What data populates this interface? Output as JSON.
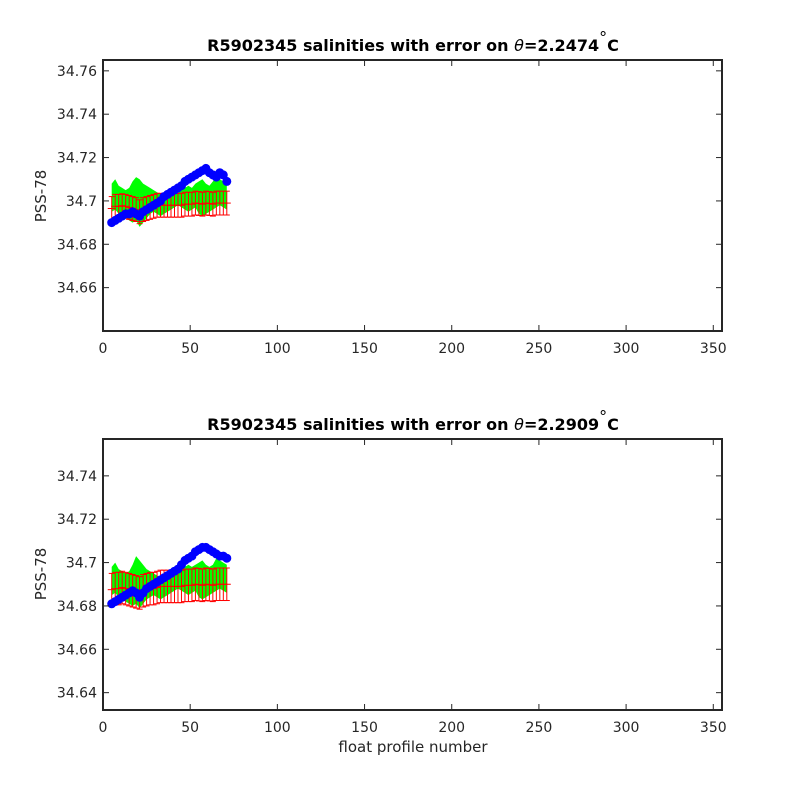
{
  "colors": {
    "band": "#00ff00",
    "errorbar": "#ff0000",
    "points": "#0000ff",
    "axis": "#262626"
  },
  "chart_data": [
    {
      "type": "scatter",
      "title_prefix": "R5902345 salinities with error on ",
      "title_theta": "θ",
      "title_value": "=2.2474",
      "title_degree": "°",
      "title_unit": "C",
      "xlabel": "",
      "ylabel": "PSS-78",
      "xlim": [
        0,
        355
      ],
      "ylim": [
        34.64,
        34.765
      ],
      "xticks": [
        0,
        50,
        100,
        150,
        200,
        250,
        300,
        350
      ],
      "yticks": [
        "34.66",
        "34.68",
        "34.7",
        "34.72",
        "34.74",
        "34.76"
      ],
      "x": [
        5,
        7,
        9,
        11,
        13,
        15,
        17,
        19,
        21,
        23,
        25,
        27,
        29,
        31,
        33,
        35,
        37,
        39,
        41,
        43,
        45,
        47,
        49,
        51,
        53,
        55,
        57,
        59,
        61,
        63,
        65,
        67,
        69,
        71
      ],
      "salinity": [
        34.69,
        34.691,
        34.692,
        34.693,
        34.694,
        34.694,
        34.695,
        34.694,
        34.693,
        34.695,
        34.696,
        34.697,
        34.698,
        34.699,
        34.7,
        34.702,
        34.703,
        34.704,
        34.705,
        34.706,
        34.707,
        34.709,
        34.71,
        34.711,
        34.712,
        34.713,
        34.714,
        34.715,
        34.713,
        34.712,
        34.711,
        34.713,
        34.712,
        34.709
      ],
      "band_upper": [
        34.708,
        34.71,
        34.707,
        34.706,
        34.705,
        34.706,
        34.709,
        34.711,
        34.71,
        34.708,
        34.707,
        34.706,
        34.705,
        34.704,
        34.703,
        34.702,
        34.703,
        34.704,
        34.705,
        34.704,
        34.705,
        34.706,
        34.707,
        34.706,
        34.708,
        34.709,
        34.71,
        34.708,
        34.707,
        34.709,
        34.711,
        34.71,
        34.709,
        34.708
      ],
      "band_lower": [
        34.695,
        34.696,
        34.694,
        34.693,
        34.692,
        34.691,
        34.69,
        34.691,
        34.688,
        34.69,
        34.692,
        34.694,
        34.695,
        34.694,
        34.693,
        34.694,
        34.695,
        34.696,
        34.697,
        34.698,
        34.697,
        34.696,
        34.695,
        34.696,
        34.697,
        34.694,
        34.693,
        34.694,
        34.695,
        34.696,
        34.697,
        34.698,
        34.697,
        34.696
      ],
      "err_center": [
        34.6965,
        34.6975,
        34.6975,
        34.6978,
        34.6975,
        34.697,
        34.6965,
        34.696,
        34.695,
        34.696,
        34.6965,
        34.697,
        34.6975,
        34.698,
        34.698,
        34.698,
        34.698,
        34.698,
        34.698,
        34.698,
        34.698,
        34.6985,
        34.6985,
        34.6985,
        34.699,
        34.6988,
        34.6985,
        34.699,
        34.6988,
        34.6985,
        34.699,
        34.699,
        34.699,
        34.699
      ],
      "err_half": 0.0055
    },
    {
      "type": "scatter",
      "title_prefix": "R5902345 salinities with error on ",
      "title_theta": "θ",
      "title_value": "=2.2909",
      "title_degree": "°",
      "title_unit": "C",
      "xlabel": "float profile number",
      "ylabel": "PSS-78",
      "xlim": [
        0,
        355
      ],
      "ylim": [
        34.632,
        34.757
      ],
      "xticks": [
        0,
        50,
        100,
        150,
        200,
        250,
        300,
        350
      ],
      "yticks": [
        "34.64",
        "34.66",
        "34.68",
        "34.7",
        "34.72",
        "34.74"
      ],
      "x": [
        5,
        7,
        9,
        11,
        13,
        15,
        17,
        19,
        21,
        23,
        25,
        27,
        29,
        31,
        33,
        35,
        37,
        39,
        41,
        43,
        45,
        47,
        49,
        51,
        53,
        55,
        57,
        59,
        61,
        63,
        65,
        67,
        69,
        71
      ],
      "salinity": [
        34.681,
        34.682,
        34.683,
        34.684,
        34.685,
        34.686,
        34.687,
        34.686,
        34.684,
        34.686,
        34.688,
        34.689,
        34.69,
        34.691,
        34.692,
        34.693,
        34.694,
        34.695,
        34.696,
        34.697,
        34.699,
        34.701,
        34.702,
        34.703,
        34.705,
        34.706,
        34.707,
        34.707,
        34.706,
        34.705,
        34.704,
        34.703,
        34.703,
        34.702
      ],
      "band_upper": [
        34.698,
        34.7,
        34.697,
        34.696,
        34.695,
        34.696,
        34.699,
        34.703,
        34.701,
        34.699,
        34.697,
        34.696,
        34.695,
        34.694,
        34.693,
        34.692,
        34.693,
        34.694,
        34.695,
        34.696,
        34.697,
        34.698,
        34.699,
        34.698,
        34.699,
        34.7,
        34.701,
        34.699,
        34.698,
        34.699,
        34.702,
        34.701,
        34.7,
        34.699
      ],
      "band_lower": [
        34.685,
        34.686,
        34.684,
        34.683,
        34.682,
        34.681,
        34.68,
        34.681,
        34.679,
        34.681,
        34.683,
        34.684,
        34.685,
        34.684,
        34.683,
        34.684,
        34.685,
        34.686,
        34.687,
        34.688,
        34.687,
        34.686,
        34.685,
        34.686,
        34.687,
        34.684,
        34.683,
        34.684,
        34.685,
        34.686,
        34.687,
        34.688,
        34.687,
        34.686
      ],
      "err_center": [
        34.6875,
        34.688,
        34.688,
        34.6885,
        34.688,
        34.6875,
        34.687,
        34.6865,
        34.686,
        34.687,
        34.6875,
        34.688,
        34.688,
        34.6885,
        34.689,
        34.689,
        34.689,
        34.689,
        34.689,
        34.689,
        34.689,
        34.6895,
        34.6895,
        34.6895,
        34.69,
        34.6898,
        34.6895,
        34.69,
        34.6898,
        34.6895,
        34.69,
        34.69,
        34.69,
        34.69
      ],
      "err_half": 0.0075
    }
  ]
}
